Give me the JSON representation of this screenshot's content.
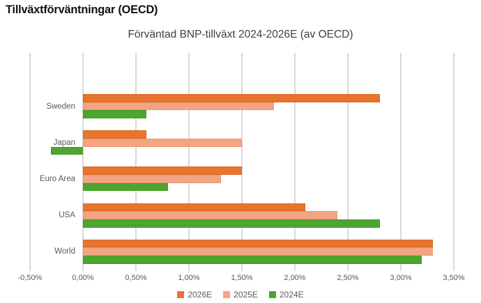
{
  "page": {
    "header": "Tillväxtförväntningar (OECD)"
  },
  "chart_data": {
    "type": "bar",
    "orientation": "horizontal",
    "title": "Förväntad BNP-tillväxt 2024-2026E (av OECD)",
    "categories": [
      "Sweden",
      "Japan",
      "Euro Area",
      "USA",
      "World"
    ],
    "series": [
      {
        "name": "2026E",
        "color": "#E8742E",
        "border_color": "#D96822",
        "values": [
          2.8,
          0.6,
          1.5,
          2.1,
          3.3
        ]
      },
      {
        "name": "2025E",
        "color": "#F2A483",
        "border_color": "#E99A74",
        "values": [
          1.8,
          1.5,
          1.3,
          2.4,
          3.3
        ]
      },
      {
        "name": "2024E",
        "color": "#4CA52F",
        "border_color": "#449A25",
        "values": [
          0.6,
          -0.3,
          0.8,
          2.8,
          3.2
        ]
      }
    ],
    "xlabel": "",
    "ylabel": "",
    "xlim": [
      -0.5,
      3.5
    ],
    "tick_step": 0.5,
    "tick_labels": [
      "-0,50%",
      "0,00%",
      "0,50%",
      "1,00%",
      "1,50%",
      "2,00%",
      "2,50%",
      "3,00%",
      "3,50%"
    ],
    "grid": true,
    "gridline_color": "#D9D9D9",
    "axis_text_color": "#595959",
    "title_color": "#404040",
    "legend_position": "bottom"
  }
}
